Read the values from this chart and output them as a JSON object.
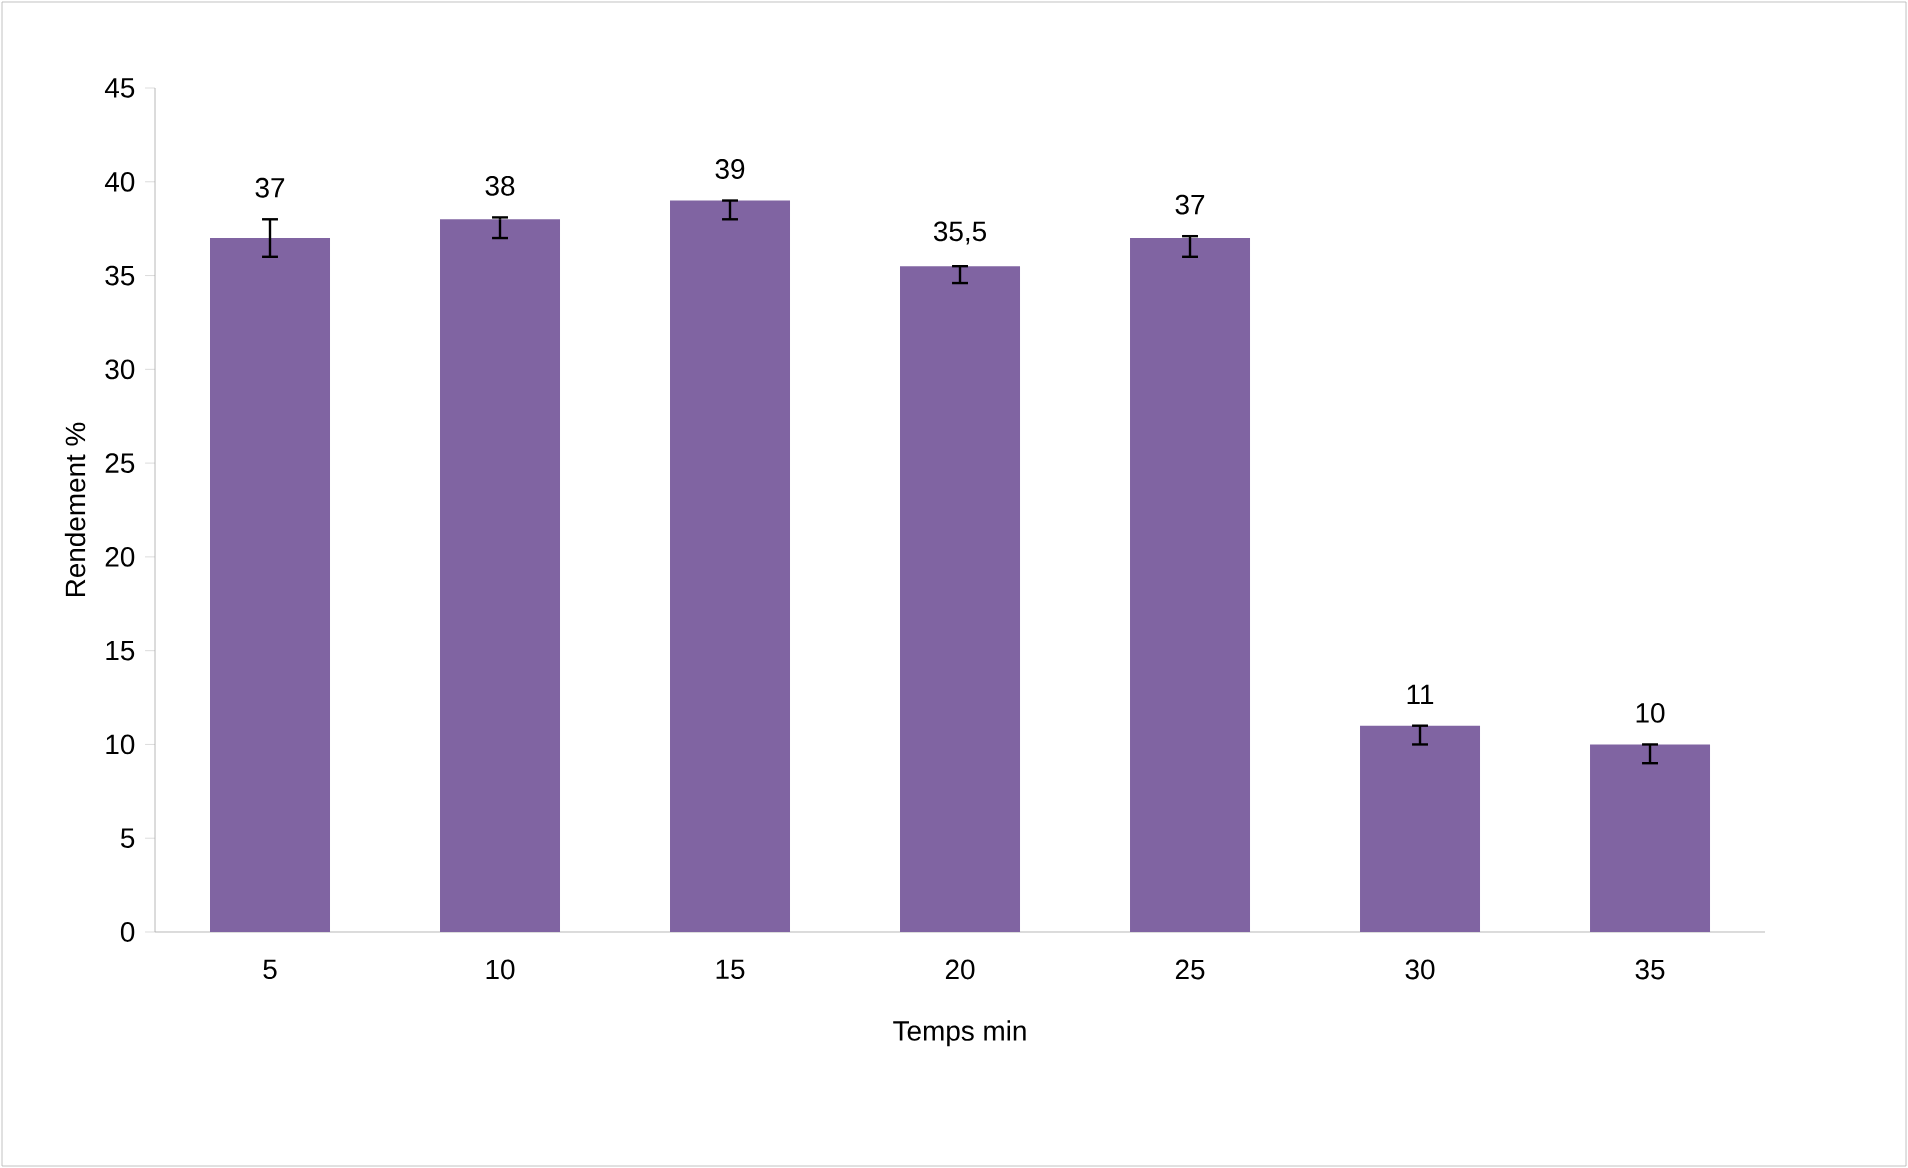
{
  "chart_data": {
    "type": "bar",
    "xlabel": "Temps min",
    "ylabel": "Rendement %",
    "categories": [
      "5",
      "10",
      "15",
      "20",
      "25",
      "30",
      "35"
    ],
    "values": [
      37,
      38,
      39,
      35.5,
      37,
      11,
      10
    ],
    "value_labels": [
      "37",
      "38",
      "39",
      "35,5",
      "37",
      "11",
      "10"
    ],
    "errors": [
      [
        36,
        38
      ],
      [
        37,
        38.1
      ],
      [
        38,
        39
      ],
      [
        34.6,
        35.5
      ],
      [
        36,
        37.1
      ],
      [
        10,
        11
      ],
      [
        9,
        10
      ]
    ],
    "color": "#8064a2",
    "ylim": [
      0,
      45
    ],
    "yticks": [
      0,
      5,
      10,
      15,
      20,
      25,
      30,
      35,
      40,
      45
    ],
    "grid": false
  }
}
